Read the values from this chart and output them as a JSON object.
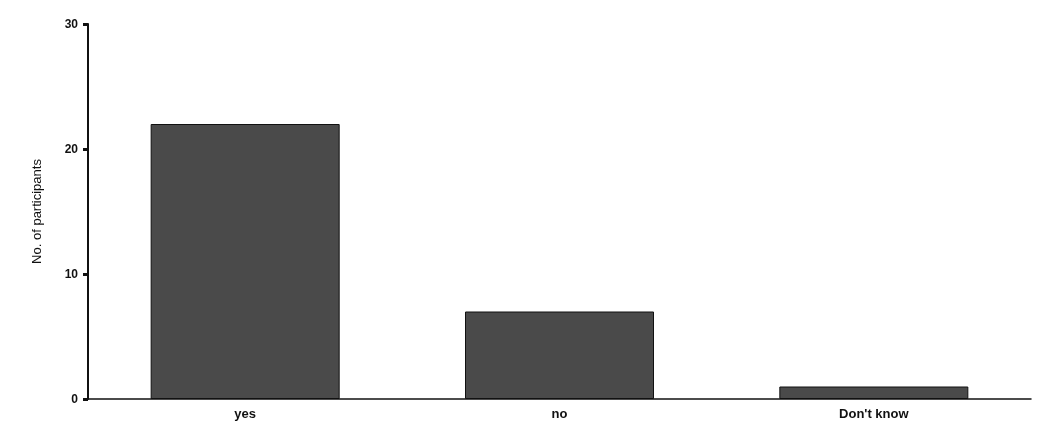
{
  "chart_data": {
    "type": "bar",
    "ylabel": "No. of participants",
    "categories": [
      "yes",
      "no",
      "Don't know"
    ],
    "values": [
      22,
      7,
      1
    ],
    "color": "#4a4a4a",
    "ylim": [
      0,
      30
    ],
    "yticks": [
      0,
      10,
      20,
      30
    ],
    "grid": false
  }
}
